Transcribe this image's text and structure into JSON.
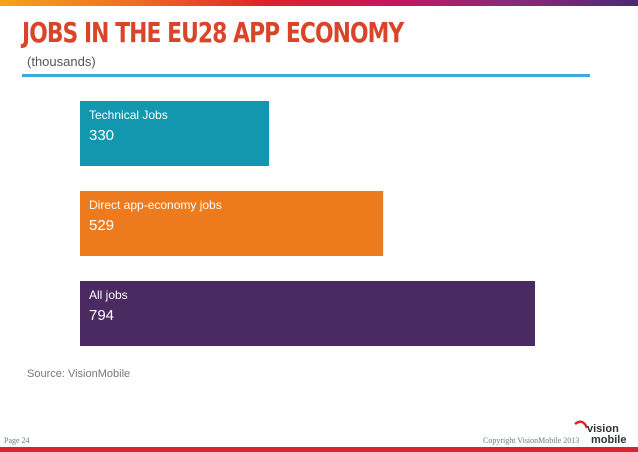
{
  "header": {
    "title": "JOBS IN THE EU28 APP ECONOMY",
    "subtitle": "(thousands)"
  },
  "footer": {
    "source": "Source: VisionMobile",
    "page": "Page 24",
    "copyright": "Copyright VisionMobile 2013",
    "logo_text_top": "vision",
    "logo_text_bottom": "mobile"
  },
  "colors": {
    "title": "#d9452b",
    "rule": "#3ea8e0",
    "technical": "#1397ae",
    "direct": "#ed7a1c",
    "all": "#4a2a60"
  },
  "chart_data": {
    "type": "bar",
    "orientation": "horizontal",
    "categories": [
      "Technical Jobs",
      "Direct app-economy jobs",
      "All jobs"
    ],
    "values": [
      330,
      529,
      794
    ],
    "colors": [
      "#1397ae",
      "#ed7a1c",
      "#4a2a60"
    ],
    "title": "JOBS IN THE EU28 APP ECONOMY",
    "subtitle": "(thousands)",
    "xlabel": "",
    "ylabel": "",
    "xlim": [
      0,
      794
    ],
    "grid": false,
    "legend": "none"
  }
}
